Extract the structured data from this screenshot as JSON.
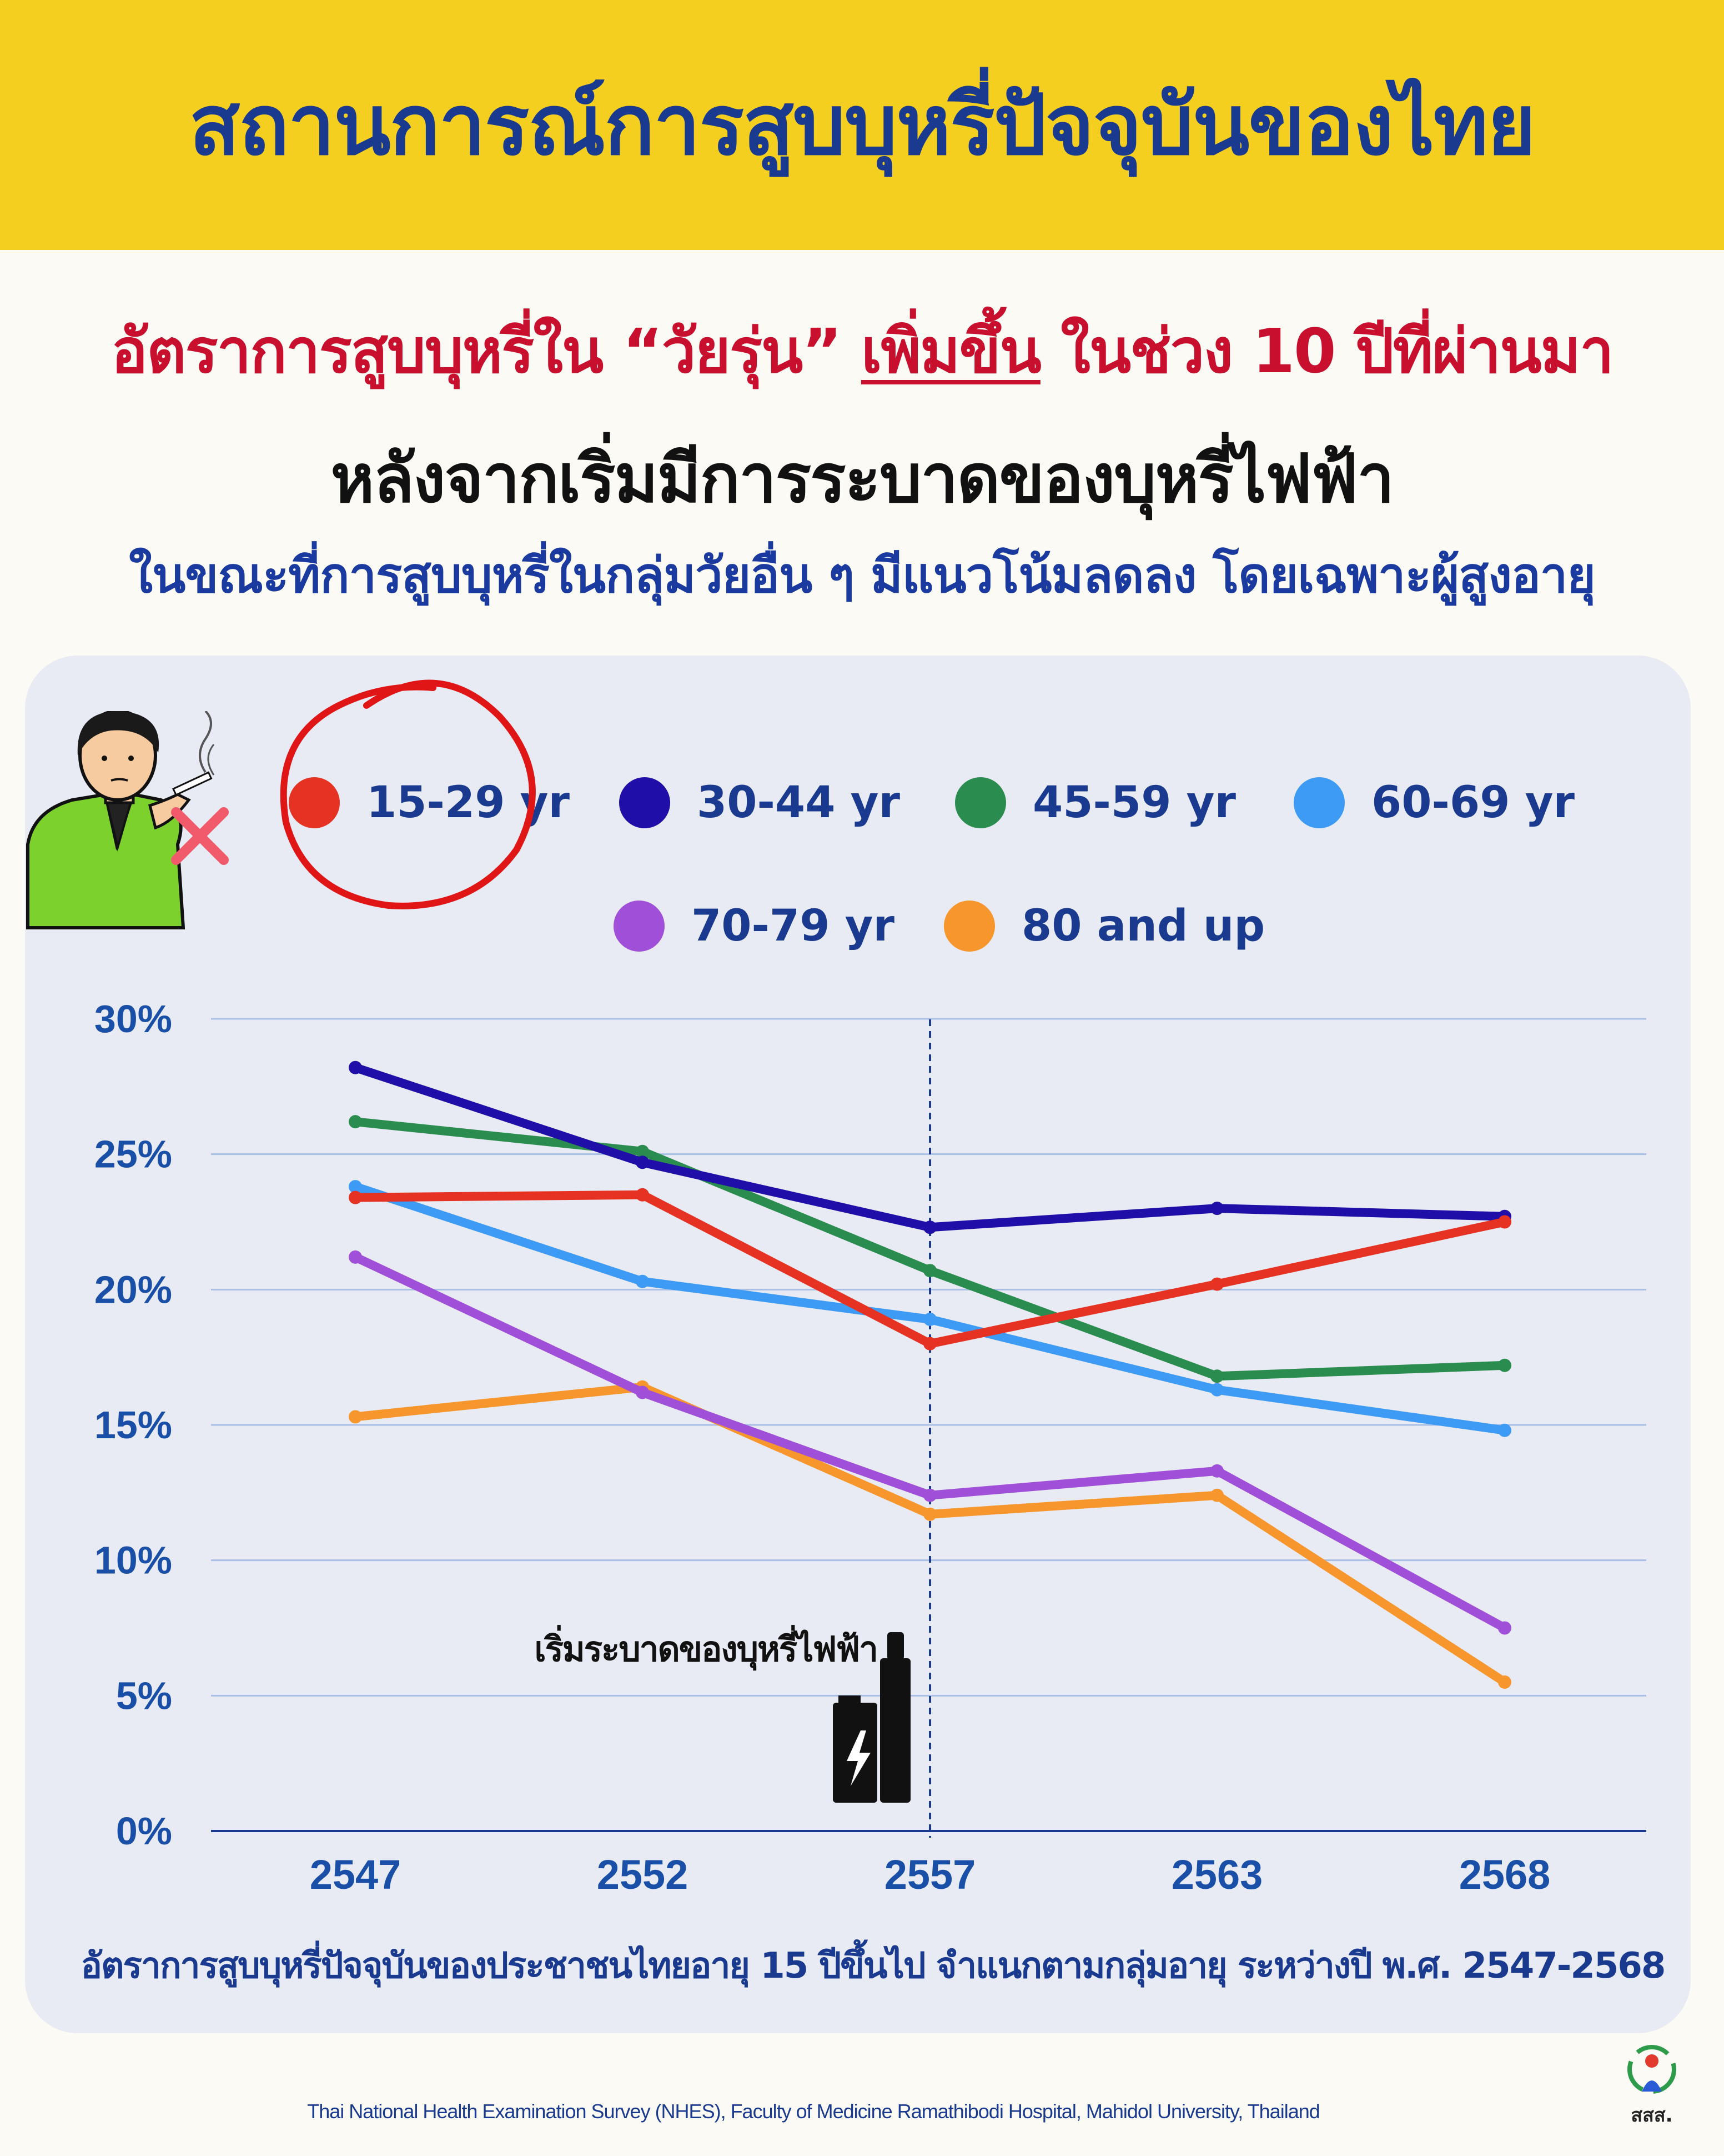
{
  "header": {
    "title": "สถานการณ์การสูบบุหรี่ปัจจุบันของไทย"
  },
  "subheadline": {
    "line1_before": "อัตราการสูบบุหรี่ใน “วัยรุ่น” ",
    "line1_underlined": "เพิ่มขึ้น",
    "line1_after": " ในช่วง 10 ปีที่ผ่านมา",
    "line2": "หลังจากเริ่มมีการระบาดของบุหรี่ไฟฟ้า",
    "line3": "ในขณะที่การสูบบุหรี่ในกลุ่มวัยอื่น ๆ มีแนวโน้มลดลง โดยเฉพาะผู้สูงอายุ"
  },
  "chart_data": {
    "type": "line",
    "categories": [
      "2547",
      "2552",
      "2557",
      "2563",
      "2568"
    ],
    "ylim": [
      0,
      30
    ],
    "yticks": [
      "0%",
      "5%",
      "10%",
      "15%",
      "20%",
      "25%",
      "30%"
    ],
    "grid": true,
    "series": [
      {
        "name": "15-29 yr",
        "color": "#e63222",
        "values": [
          23.4,
          23.5,
          18.0,
          20.2,
          22.5
        ],
        "highlighted": true
      },
      {
        "name": "30-44 yr",
        "color": "#1f0fa8",
        "values": [
          28.2,
          24.7,
          22.3,
          23.0,
          22.7
        ]
      },
      {
        "name": "45-59 yr",
        "color": "#2a8c4e",
        "values": [
          26.2,
          25.1,
          20.7,
          16.8,
          17.2
        ]
      },
      {
        "name": "60-69 yr",
        "color": "#3d9af5",
        "values": [
          23.8,
          20.3,
          18.9,
          16.3,
          14.8
        ]
      },
      {
        "name": "70-79 yr",
        "color": "#a050d8",
        "values": [
          21.2,
          16.2,
          12.4,
          13.3,
          7.5
        ]
      },
      {
        "name": "80 and up",
        "color": "#f7962c",
        "values": [
          15.3,
          16.4,
          11.7,
          12.4,
          5.5
        ]
      }
    ],
    "annotation": {
      "text": "เริ่มระบาดของบุหรี่ไฟฟ้า",
      "at_category": "2557"
    },
    "caption": "อัตราการสูบบุหรี่ปัจจุบันของประชาชนไทยอายุ 15 ปีขึ้นไป จำแนกตามกลุ่มอายุ ระหว่างปี พ.ศ. 2547-2568"
  },
  "source": "Thai National Health Examination Survey (NHES), Faculty of Medicine Ramathibodi Hospital, Mahidol University, Thailand",
  "logo": {
    "text": "สสส."
  },
  "icons": [
    "smoker-illustration-icon",
    "no-smoking-x-icon",
    "e-cigarette-icon",
    "lightning-bolt-icon"
  ]
}
